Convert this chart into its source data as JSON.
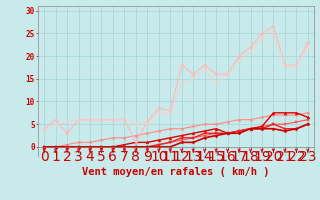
{
  "background_color": "#c8eaea",
  "grid_color": "#a8d8d8",
  "x_values": [
    0,
    1,
    2,
    3,
    4,
    5,
    6,
    7,
    8,
    9,
    10,
    11,
    12,
    13,
    14,
    15,
    16,
    17,
    18,
    19,
    20,
    21,
    22,
    23
  ],
  "xlabel": "Vent moyen/en rafales ( km/h )",
  "yticks": [
    0,
    5,
    10,
    15,
    20,
    25,
    30
  ],
  "ylim": [
    -2,
    31
  ],
  "xlim": [
    -0.5,
    23.5
  ],
  "series": [
    {
      "color": "#ff8888",
      "alpha": 1.0,
      "linewidth": 0.8,
      "marker": "o",
      "markersize": 1.5,
      "values": [
        0,
        0,
        0.5,
        1,
        1,
        1.5,
        2,
        2,
        2.5,
        3,
        3.5,
        4,
        4,
        4.5,
        5,
        5,
        5.5,
        6,
        6,
        6.5,
        7,
        7,
        7,
        7.5
      ]
    },
    {
      "color": "#ff5555",
      "alpha": 1.0,
      "linewidth": 0.8,
      "marker": "s",
      "markersize": 1.5,
      "values": [
        0,
        0,
        0,
        0,
        0,
        0,
        0,
        0,
        0,
        0,
        0.5,
        1,
        1.5,
        2,
        2.5,
        3,
        3,
        3.5,
        4,
        4.5,
        5,
        5,
        5.5,
        6
      ]
    },
    {
      "color": "#dd0000",
      "alpha": 1.0,
      "linewidth": 1.0,
      "marker": "^",
      "markersize": 2,
      "values": [
        0,
        0,
        0,
        0,
        0,
        0,
        0,
        0.5,
        1,
        1,
        1.5,
        2,
        2.5,
        3,
        3.5,
        4,
        3,
        3.5,
        4,
        4.5,
        7.5,
        7.5,
        7.5,
        6.5
      ]
    },
    {
      "color": "#ee2222",
      "alpha": 1.0,
      "linewidth": 1.0,
      "marker": "s",
      "markersize": 2,
      "values": [
        0,
        0,
        0,
        0,
        0,
        0,
        0,
        0,
        0,
        0,
        0.5,
        1,
        2,
        2,
        3,
        3,
        3,
        3.5,
        4,
        4,
        5,
        4,
        4,
        5
      ]
    },
    {
      "color": "#cc0000",
      "alpha": 1.0,
      "linewidth": 1.2,
      "marker": "D",
      "markersize": 1.5,
      "values": [
        0,
        0,
        0,
        0,
        0,
        0,
        0,
        0,
        0,
        0,
        0,
        0,
        1,
        1,
        2,
        2.5,
        3,
        3,
        4,
        4,
        4,
        3.5,
        4,
        5
      ]
    },
    {
      "color": "#ffbbbb",
      "alpha": 0.9,
      "linewidth": 1.0,
      "marker": "o",
      "markersize": 2,
      "values": [
        4,
        6,
        3,
        6,
        6,
        6,
        6,
        6,
        1,
        5.5,
        8.5,
        8,
        18,
        16,
        18,
        16,
        16,
        20,
        22,
        25,
        26.5,
        18,
        18,
        23
      ]
    },
    {
      "color": "#ffcccc",
      "alpha": 0.7,
      "linewidth": 0.8,
      "marker": "o",
      "markersize": 1.5,
      "values": [
        4,
        5,
        5.5,
        6,
        6,
        6,
        6,
        6,
        5,
        5,
        7.5,
        7.5,
        14,
        15,
        17,
        14,
        16,
        19,
        21,
        24,
        25,
        18,
        18,
        22
      ]
    }
  ],
  "arrow_color": "#cc0000",
  "tick_fontsize": 5.5,
  "xlabel_fontsize": 7.5
}
